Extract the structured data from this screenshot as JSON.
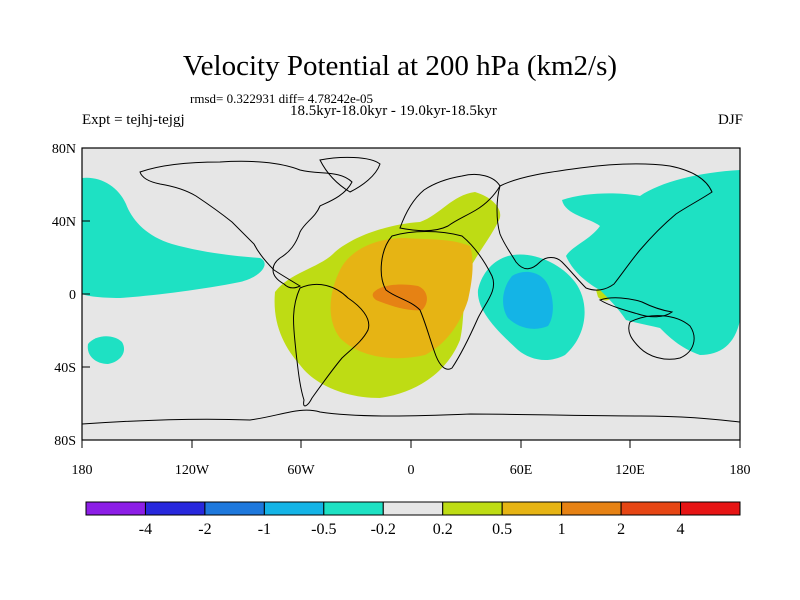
{
  "title": "Velocity Potential at 200 hPa (km2/s)",
  "stats": "rmsd= 0.322931 diff= 4.78242e-05",
  "periods": "18.5kyr-18.0kyr - 19.0kyr-18.5kyr",
  "experiment": "Expt = tejhj-tejgj",
  "season": "DJF",
  "map": {
    "background_color": "#e6e6e6",
    "lat_ticks": [
      "80N",
      "40N",
      "0",
      "40S",
      "80S"
    ],
    "lon_ticks": [
      "180",
      "120W",
      "60W",
      "0",
      "60E",
      "120E",
      "180"
    ]
  },
  "colorbar": {
    "colors": [
      "#8c1ee6",
      "#2828dc",
      "#1e78dc",
      "#14b4e6",
      "#1ee1c3",
      "#e6e6e6",
      "#bedc14",
      "#e6b414",
      "#e68214",
      "#e64614",
      "#e61414"
    ],
    "labels": [
      "-4",
      "-2",
      "-1",
      "-0.5",
      "-0.2",
      "0.2",
      "0.5",
      "1",
      "2",
      "4"
    ]
  }
}
